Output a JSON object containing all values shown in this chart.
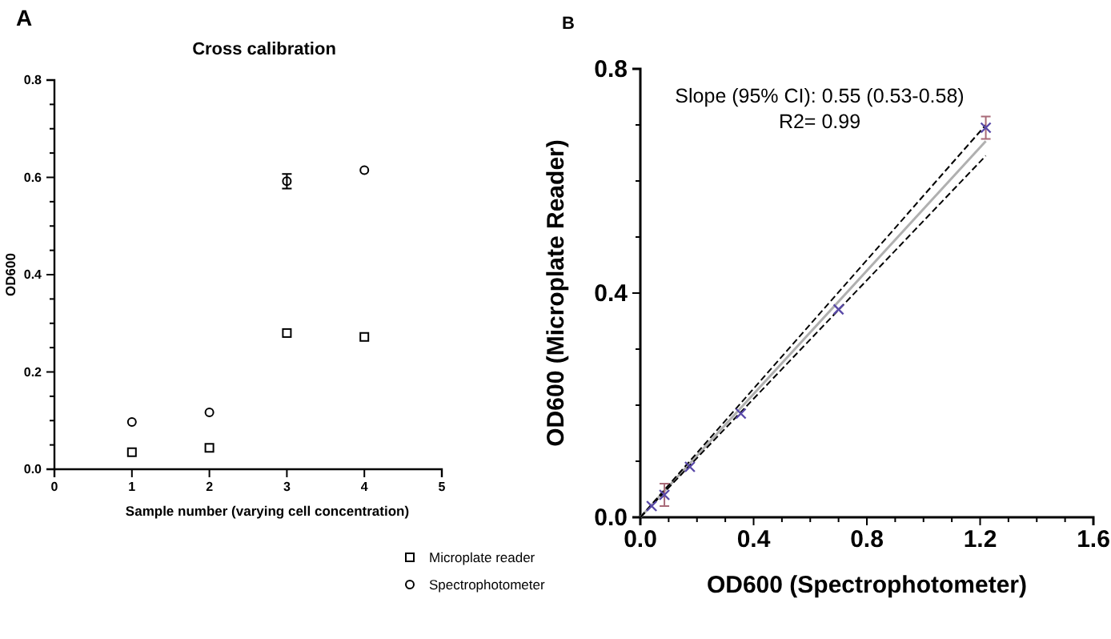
{
  "chart_data": [
    {
      "type": "scatter",
      "title": "Cross calibration",
      "xlabel": "Sample number (varying cell concentration)",
      "ylabel": "OD600",
      "annotations": [
        "A"
      ],
      "xlim": [
        0,
        5
      ],
      "xticks": [
        0,
        1,
        2,
        3,
        4,
        5
      ],
      "ylim": [
        0,
        0.8
      ],
      "yticks": [
        {
          "value": 0,
          "label": "0.0"
        },
        {
          "value": 0.05,
          "label": null
        },
        {
          "value": 0.1,
          "label": null
        },
        {
          "value": 0.15,
          "label": null
        },
        {
          "value": 0.2,
          "label": "0.2"
        },
        {
          "value": 0.25,
          "label": null
        },
        {
          "value": 0.3,
          "label": null
        },
        {
          "value": 0.35,
          "label": null
        },
        {
          "value": 0.4,
          "label": "0.4"
        },
        {
          "value": 0.45,
          "label": null
        },
        {
          "value": 0.5,
          "label": null
        },
        {
          "value": 0.55,
          "label": null
        },
        {
          "value": 0.6,
          "label": "0.6"
        },
        {
          "value": 0.65,
          "label": null
        },
        {
          "value": 0.7,
          "label": null
        },
        {
          "value": 0.75,
          "label": null
        },
        {
          "value": 0.8,
          "label": "0.8"
        }
      ],
      "x": [
        1,
        2,
        3,
        4
      ],
      "legend": "bottom right",
      "grid": false,
      "series": [
        {
          "name": "Microplate reader",
          "color": "#000000",
          "marker": "square",
          "values": [
            0.035,
            0.044,
            0.28,
            0.272
          ]
        },
        {
          "name": "Spectrophotometer",
          "color": "#000000",
          "marker": "circle",
          "values": [
            0.097,
            0.117,
            0.592,
            0.615
          ],
          "errors": [
            null,
            null,
            0.015,
            null
          ]
        }
      ]
    },
    {
      "type": "scatter",
      "xlabel": "OD600 (Spectrophotometer)",
      "ylabel": "OD600 (Microplate Reader)",
      "annotations": [
        "B",
        "Slope (95% CI): 0.55 (0.53-0.58)",
        "R2= 0.99"
      ],
      "xlim": [
        0,
        1.6
      ],
      "xticks": [
        {
          "value": 0,
          "label": "0.0"
        },
        {
          "value": 0.1,
          "label": null
        },
        {
          "value": 0.2,
          "label": null
        },
        {
          "value": 0.3,
          "label": null
        },
        {
          "value": 0.4,
          "label": "0.4"
        },
        {
          "value": 0.5,
          "label": null
        },
        {
          "value": 0.6,
          "label": null
        },
        {
          "value": 0.7,
          "label": null
        },
        {
          "value": 0.8,
          "label": "0.8"
        },
        {
          "value": 0.9,
          "label": null
        },
        {
          "value": 1.0,
          "label": null
        },
        {
          "value": 1.1,
          "label": null
        },
        {
          "value": 1.2,
          "label": "1.2"
        },
        {
          "value": 1.3,
          "label": null
        },
        {
          "value": 1.4,
          "label": null
        },
        {
          "value": 1.5,
          "label": null
        },
        {
          "value": 1.6,
          "label": "1.6"
        }
      ],
      "ylim": [
        0,
        0.8
      ],
      "yticks": [
        {
          "value": 0,
          "label": "0.0"
        },
        {
          "value": 0.1,
          "label": null
        },
        {
          "value": 0.2,
          "label": null
        },
        {
          "value": 0.3,
          "label": null
        },
        {
          "value": 0.4,
          "label": "0.4"
        },
        {
          "value": 0.5,
          "label": null
        },
        {
          "value": 0.6,
          "label": null
        },
        {
          "value": 0.7,
          "label": null
        },
        {
          "value": 0.8,
          "label": "0.8"
        }
      ],
      "grid": false,
      "legend": false,
      "series": [
        {
          "type": "line",
          "color": "#b0b0b0",
          "x": [
            0,
            1.22
          ],
          "values": [
            0,
            0.671
          ],
          "line_style": "solid"
        },
        {
          "type": "line",
          "color": "#000000",
          "x": [
            0,
            1.22
          ],
          "values": [
            0,
            0.7
          ],
          "line_style": "dashed"
        },
        {
          "type": "line",
          "color": "#000000",
          "x": [
            0,
            1.22
          ],
          "values": [
            0,
            0.645
          ],
          "line_style": "dashed"
        },
        {
          "color": "#5a4aa8",
          "marker": "cross",
          "x": [
            0.04,
            0.085,
            0.175,
            0.355,
            0.7,
            1.22
          ],
          "values": [
            0.02,
            0.04,
            0.09,
            0.185,
            0.371,
            0.695
          ],
          "errors": [
            null,
            0.02,
            null,
            null,
            null,
            0.02
          ]
        }
      ]
    }
  ]
}
